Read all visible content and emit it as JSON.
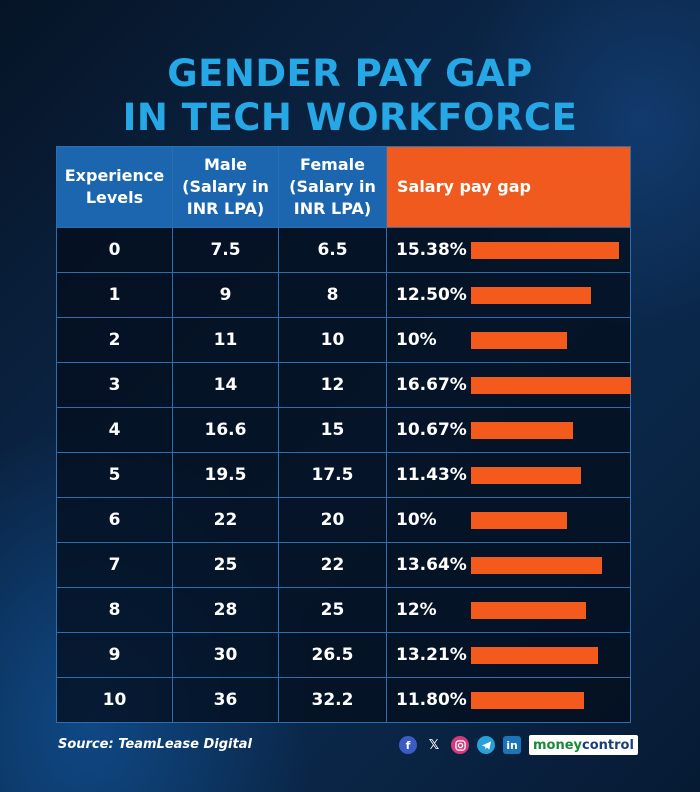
{
  "title_line1": "GENDER PAY GAP",
  "title_line2": "IN TECH WORKFORCE",
  "headers": {
    "experience": [
      "Experience",
      "Levels"
    ],
    "male": [
      "Male",
      "(Salary in",
      "INR LPA)"
    ],
    "female": [
      "Female",
      "(Salary in",
      "INR LPA)"
    ],
    "gap": "Salary pay gap"
  },
  "chart_data": {
    "type": "table",
    "title": "GENDER PAY GAP IN TECH WORKFORCE",
    "columns": [
      "Experience Levels",
      "Male (Salary in INR LPA)",
      "Female (Salary in INR LPA)",
      "Salary pay gap"
    ],
    "rows": [
      {
        "level": "0",
        "male": "7.5",
        "female": "6.5",
        "gap_label": "15.38%",
        "gap": 15.38
      },
      {
        "level": "1",
        "male": "9",
        "female": "8",
        "gap_label": "12.50%",
        "gap": 12.5
      },
      {
        "level": "2",
        "male": "11",
        "female": "10",
        "gap_label": "10%",
        "gap": 10
      },
      {
        "level": "3",
        "male": "14",
        "female": "12",
        "gap_label": "16.67%",
        "gap": 16.67
      },
      {
        "level": "4",
        "male": "16.6",
        "female": "15",
        "gap_label": "10.67%",
        "gap": 10.67
      },
      {
        "level": "5",
        "male": "19.5",
        "female": "17.5",
        "gap_label": "11.43%",
        "gap": 11.43
      },
      {
        "level": "6",
        "male": "22",
        "female": "20",
        "gap_label": "10%",
        "gap": 10
      },
      {
        "level": "7",
        "male": "25",
        "female": "22",
        "gap_label": "13.64%",
        "gap": 13.64
      },
      {
        "level": "8",
        "male": "28",
        "female": "25",
        "gap_label": "12%",
        "gap": 12
      },
      {
        "level": "9",
        "male": "30",
        "female": "26.5",
        "gap_label": "13.21%",
        "gap": 13.21
      },
      {
        "level": "10",
        "male": "36",
        "female": "32.2",
        "gap_label": "11.80%",
        "gap": 11.8
      }
    ],
    "bar_color": "#f35a1c",
    "header_color": "#1b66ae",
    "gap_header_color": "#f05a1e"
  },
  "footer": {
    "source": "Source: TeamLease Digital",
    "logo_part1": "money",
    "logo_part2": "control",
    "icons": [
      "facebook-icon",
      "x-icon",
      "instagram-icon",
      "telegram-icon",
      "linkedin-icon"
    ]
  }
}
